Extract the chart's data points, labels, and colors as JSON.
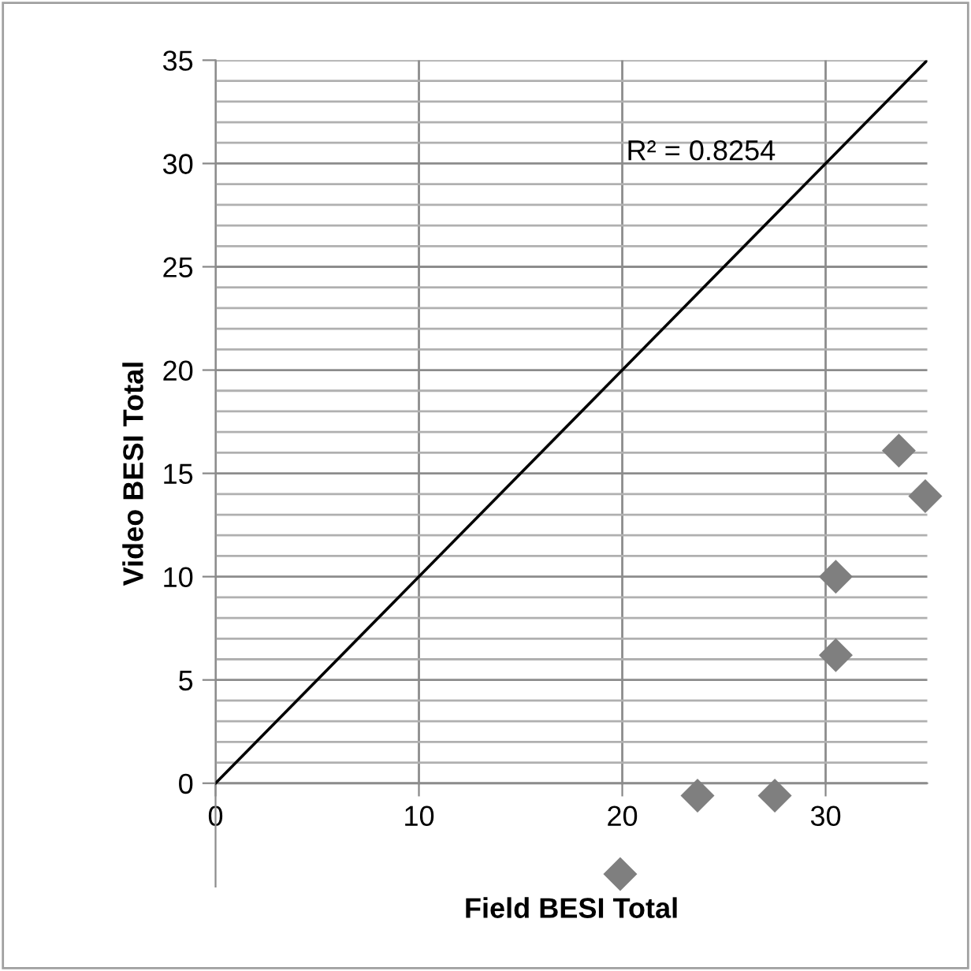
{
  "chart_data": {
    "type": "scatter",
    "xlabel": "Field BESI Total",
    "ylabel": "Video BESI Total",
    "xlim": [
      0,
      35
    ],
    "ylim": [
      -5,
      35
    ],
    "xticks": [
      0,
      10,
      20,
      30
    ],
    "yticks": [
      0,
      {
        "value": 1,
        "label": null
      },
      {
        "value": 2,
        "label": null
      },
      {
        "value": 3,
        "label": null
      },
      {
        "value": 4,
        "label": null
      },
      5,
      {
        "value": 6,
        "label": null
      },
      {
        "value": 7,
        "label": null
      },
      {
        "value": 8,
        "label": null
      },
      {
        "value": 9,
        "label": null
      },
      10,
      {
        "value": 11,
        "label": null
      },
      {
        "value": 12,
        "label": null
      },
      {
        "value": 13,
        "label": null
      },
      {
        "value": 14,
        "label": null
      },
      15,
      {
        "value": 16,
        "label": null
      },
      {
        "value": 17,
        "label": null
      },
      {
        "value": 18,
        "label": null
      },
      {
        "value": 19,
        "label": null
      },
      20,
      {
        "value": 21,
        "label": null
      },
      {
        "value": 22,
        "label": null
      },
      {
        "value": 23,
        "label": null
      },
      {
        "value": 24,
        "label": null
      },
      25,
      {
        "value": 26,
        "label": null
      },
      {
        "value": 27,
        "label": null
      },
      {
        "value": 28,
        "label": null
      },
      {
        "value": 29,
        "label": null
      },
      30,
      {
        "value": 31,
        "label": null
      },
      {
        "value": 32,
        "label": null
      },
      {
        "value": 33,
        "label": null
      },
      {
        "value": 34,
        "label": null
      },
      35
    ],
    "grid": true,
    "legend": false,
    "marker": "diamond",
    "series": [
      {
        "color": "#7f7f7f",
        "x": [
          33.6,
          34.9,
          30.5,
          30.5,
          23.7,
          27.5,
          19.9
        ],
        "values": [
          16.1,
          13.9,
          10.0,
          6.2,
          -0.6,
          -0.6,
          -4.4
        ]
      },
      {
        "type": "line",
        "color": "#000000",
        "x": [
          0,
          35
        ],
        "values": [
          0,
          35
        ],
        "marker": "none"
      }
    ],
    "annotations": [
      "R² = 0.8254"
    ]
  }
}
